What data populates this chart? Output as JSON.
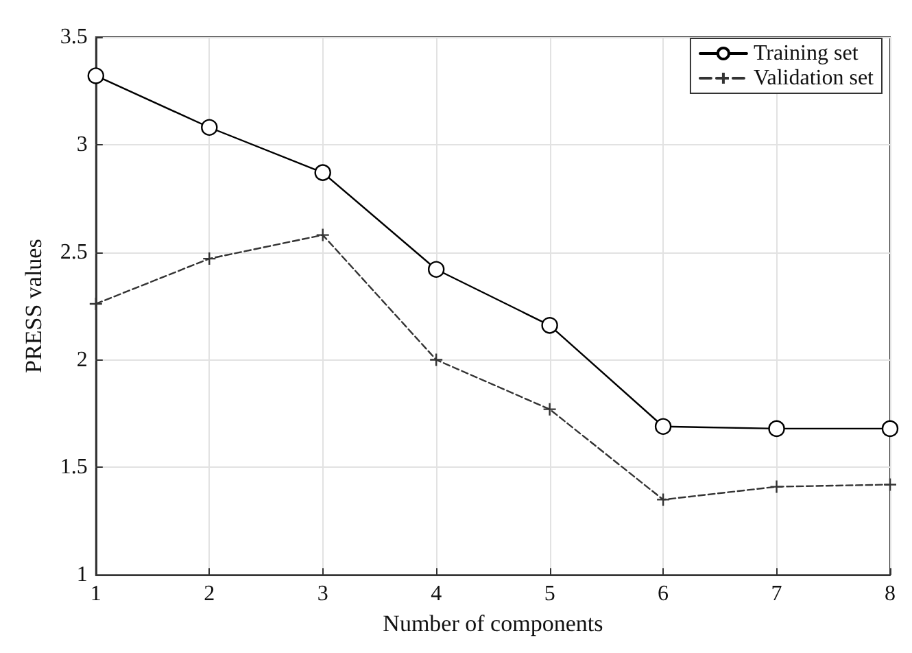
{
  "chart_data": {
    "type": "line",
    "xlabel": "Number of components",
    "ylabel": "PRESS values",
    "x": [
      1,
      2,
      3,
      4,
      5,
      6,
      7,
      8
    ],
    "series": [
      {
        "name": "Training set",
        "color": "#000000",
        "marker": "circle",
        "line_style": "solid",
        "values": [
          3.32,
          3.08,
          2.87,
          2.42,
          2.16,
          1.69,
          1.68,
          1.68
        ]
      },
      {
        "name": "Validation set",
        "color": "#333333",
        "marker": "cross",
        "line_style": "dashed",
        "values": [
          2.26,
          2.47,
          2.58,
          2.0,
          1.77,
          1.35,
          1.41,
          1.42
        ]
      }
    ],
    "xlim": [
      1,
      8
    ],
    "xticks": [
      1,
      2,
      3,
      4,
      5,
      6,
      7,
      8
    ],
    "ylim": [
      1,
      3.5
    ],
    "yticks": [
      1,
      1.5,
      2,
      2.5,
      3,
      3.5
    ],
    "grid": true,
    "legend": "top right"
  }
}
